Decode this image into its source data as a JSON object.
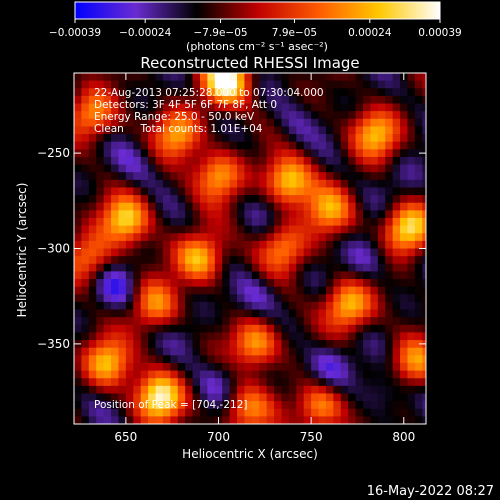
{
  "chart_data": {
    "type": "heatmap",
    "title": "Reconstructed RHESSI Image",
    "xlabel": "Heliocentric X (arcsec)",
    "ylabel": "Heliocentric Y (arcsec)",
    "xlim": [
      622,
      812
    ],
    "ylim": [
      -392,
      -208
    ],
    "x_ticks": [
      650,
      700,
      750,
      800
    ],
    "x_tick_labels": [
      "650",
      "700",
      "750",
      "800"
    ],
    "y_ticks": [
      -250,
      -300,
      -350
    ],
    "y_tick_labels": [
      "−250",
      "−300",
      "−350"
    ],
    "colorbar": {
      "min": -0.00039,
      "max": 0.00039,
      "ticks": [
        -0.00039,
        -0.00024,
        -7.9e-05,
        7.9e-05,
        0.00024,
        0.00039
      ],
      "tick_labels": [
        "−0.00039",
        "−0.00024",
        "−7.9e−05",
        "7.9e−05",
        "0.00024",
        "0.00039"
      ],
      "unit_label": "(photons cm⁻² s⁻¹ asec⁻²)",
      "colors": [
        "#0000ff",
        "#6a2bd1",
        "#000000",
        "#c00000",
        "#ff5a00",
        "#ffc800",
        "#ffffff"
      ]
    },
    "annotations": [
      "22-Aug-2013 07:25:28.000 to 07:30:04.000",
      "Detectors: 3F 4F 5F 6F 7F 8F, Att 0",
      "Energy Range: 25.0 - 50.0 keV",
      "Clean     Total counts: 1.01E+04"
    ],
    "peak_label": "Position of Peak = [704,-212]",
    "hot_spots": [
      {
        "x": 704,
        "y": -212,
        "value": 0.00039
      },
      {
        "x": 668,
        "y": -378,
        "value": 0.00035
      },
      {
        "x": 802,
        "y": -290,
        "value": 0.00033
      },
      {
        "x": 738,
        "y": -265,
        "value": 0.0003
      },
      {
        "x": 650,
        "y": -285,
        "value": 0.00028
      },
      {
        "x": 770,
        "y": -330,
        "value": 0.00026
      },
      {
        "x": 690,
        "y": -305,
        "value": 0.00026
      },
      {
        "x": 640,
        "y": -360,
        "value": 0.00024
      },
      {
        "x": 720,
        "y": -350,
        "value": 0.00024
      },
      {
        "x": 785,
        "y": -240,
        "value": 0.00023
      },
      {
        "x": 700,
        "y": -262,
        "value": 0.00022
      },
      {
        "x": 755,
        "y": -383,
        "value": 0.00022
      },
      {
        "x": 632,
        "y": -230,
        "value": 0.0002
      },
      {
        "x": 678,
        "y": -240,
        "value": 0.00021
      },
      {
        "x": 760,
        "y": -280,
        "value": 0.00019
      },
      {
        "x": 805,
        "y": -360,
        "value": 0.00018
      },
      {
        "x": 665,
        "y": -330,
        "value": 0.00018
      },
      {
        "x": 735,
        "y": -300,
        "value": 0.00017
      },
      {
        "x": 715,
        "y": -385,
        "value": 0.00016
      },
      {
        "x": 630,
        "y": -305,
        "value": 0.00016
      }
    ],
    "cold_spots": [
      {
        "x": 645,
        "y": -320,
        "value": -0.00028
      },
      {
        "x": 720,
        "y": -325,
        "value": -0.00026
      },
      {
        "x": 780,
        "y": -305,
        "value": -0.00026
      },
      {
        "x": 760,
        "y": -362,
        "value": -0.0003
      },
      {
        "x": 655,
        "y": -255,
        "value": -0.00022
      },
      {
        "x": 790,
        "y": -375,
        "value": -0.00024
      },
      {
        "x": 700,
        "y": -370,
        "value": -0.00022
      },
      {
        "x": 740,
        "y": -235,
        "value": -0.0002
      },
      {
        "x": 725,
        "y": -280,
        "value": -0.00018
      },
      {
        "x": 800,
        "y": -265,
        "value": -0.0002
      },
      {
        "x": 685,
        "y": -345,
        "value": -0.00018
      },
      {
        "x": 630,
        "y": -385,
        "value": -0.00016
      }
    ]
  },
  "footer": {
    "timestamp": "16-May-2022 08:27"
  }
}
